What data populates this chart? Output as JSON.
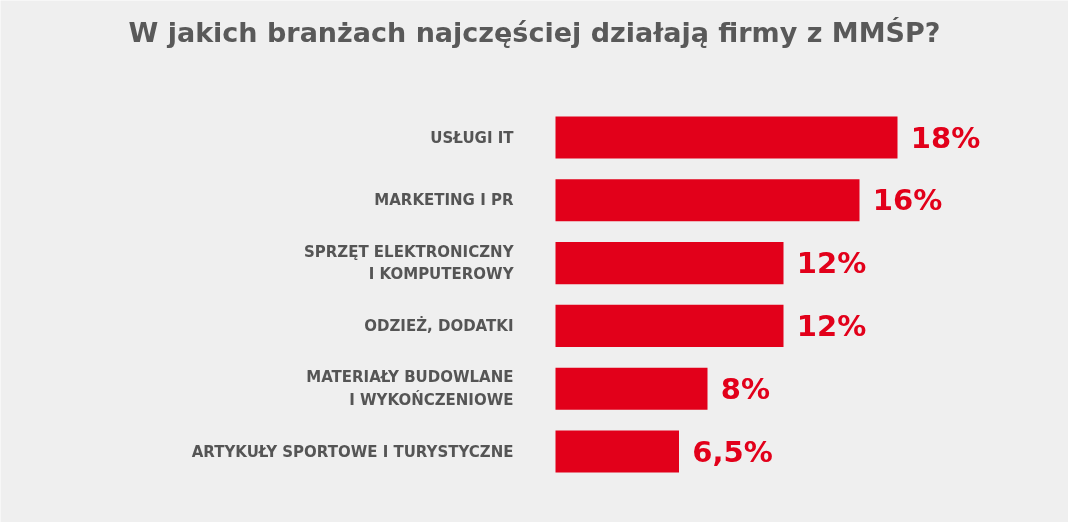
{
  "chart_data": {
    "type": "bar",
    "orientation": "horizontal",
    "title": "W jakich branżach najczęściej działają firmy z MMŚP?",
    "categories": [
      "USŁUGI IT",
      "MARKETING I PR",
      "SPRZĘT ELEKTRONICZNY\nI KOMPUTEROWY",
      "ODZIEŻ, DODATKI",
      "MATERIAŁY BUDOWLANE\nI WYKOŃCZENIOWE",
      "ARTYKUŁY SPORTOWE I TURYSTYCZNE"
    ],
    "values": [
      18,
      16,
      12,
      12,
      8,
      6.5
    ],
    "value_labels": [
      "18%",
      "16%",
      "12%",
      "12%",
      "8%",
      "6,5%"
    ],
    "color": "#e2001a"
  }
}
